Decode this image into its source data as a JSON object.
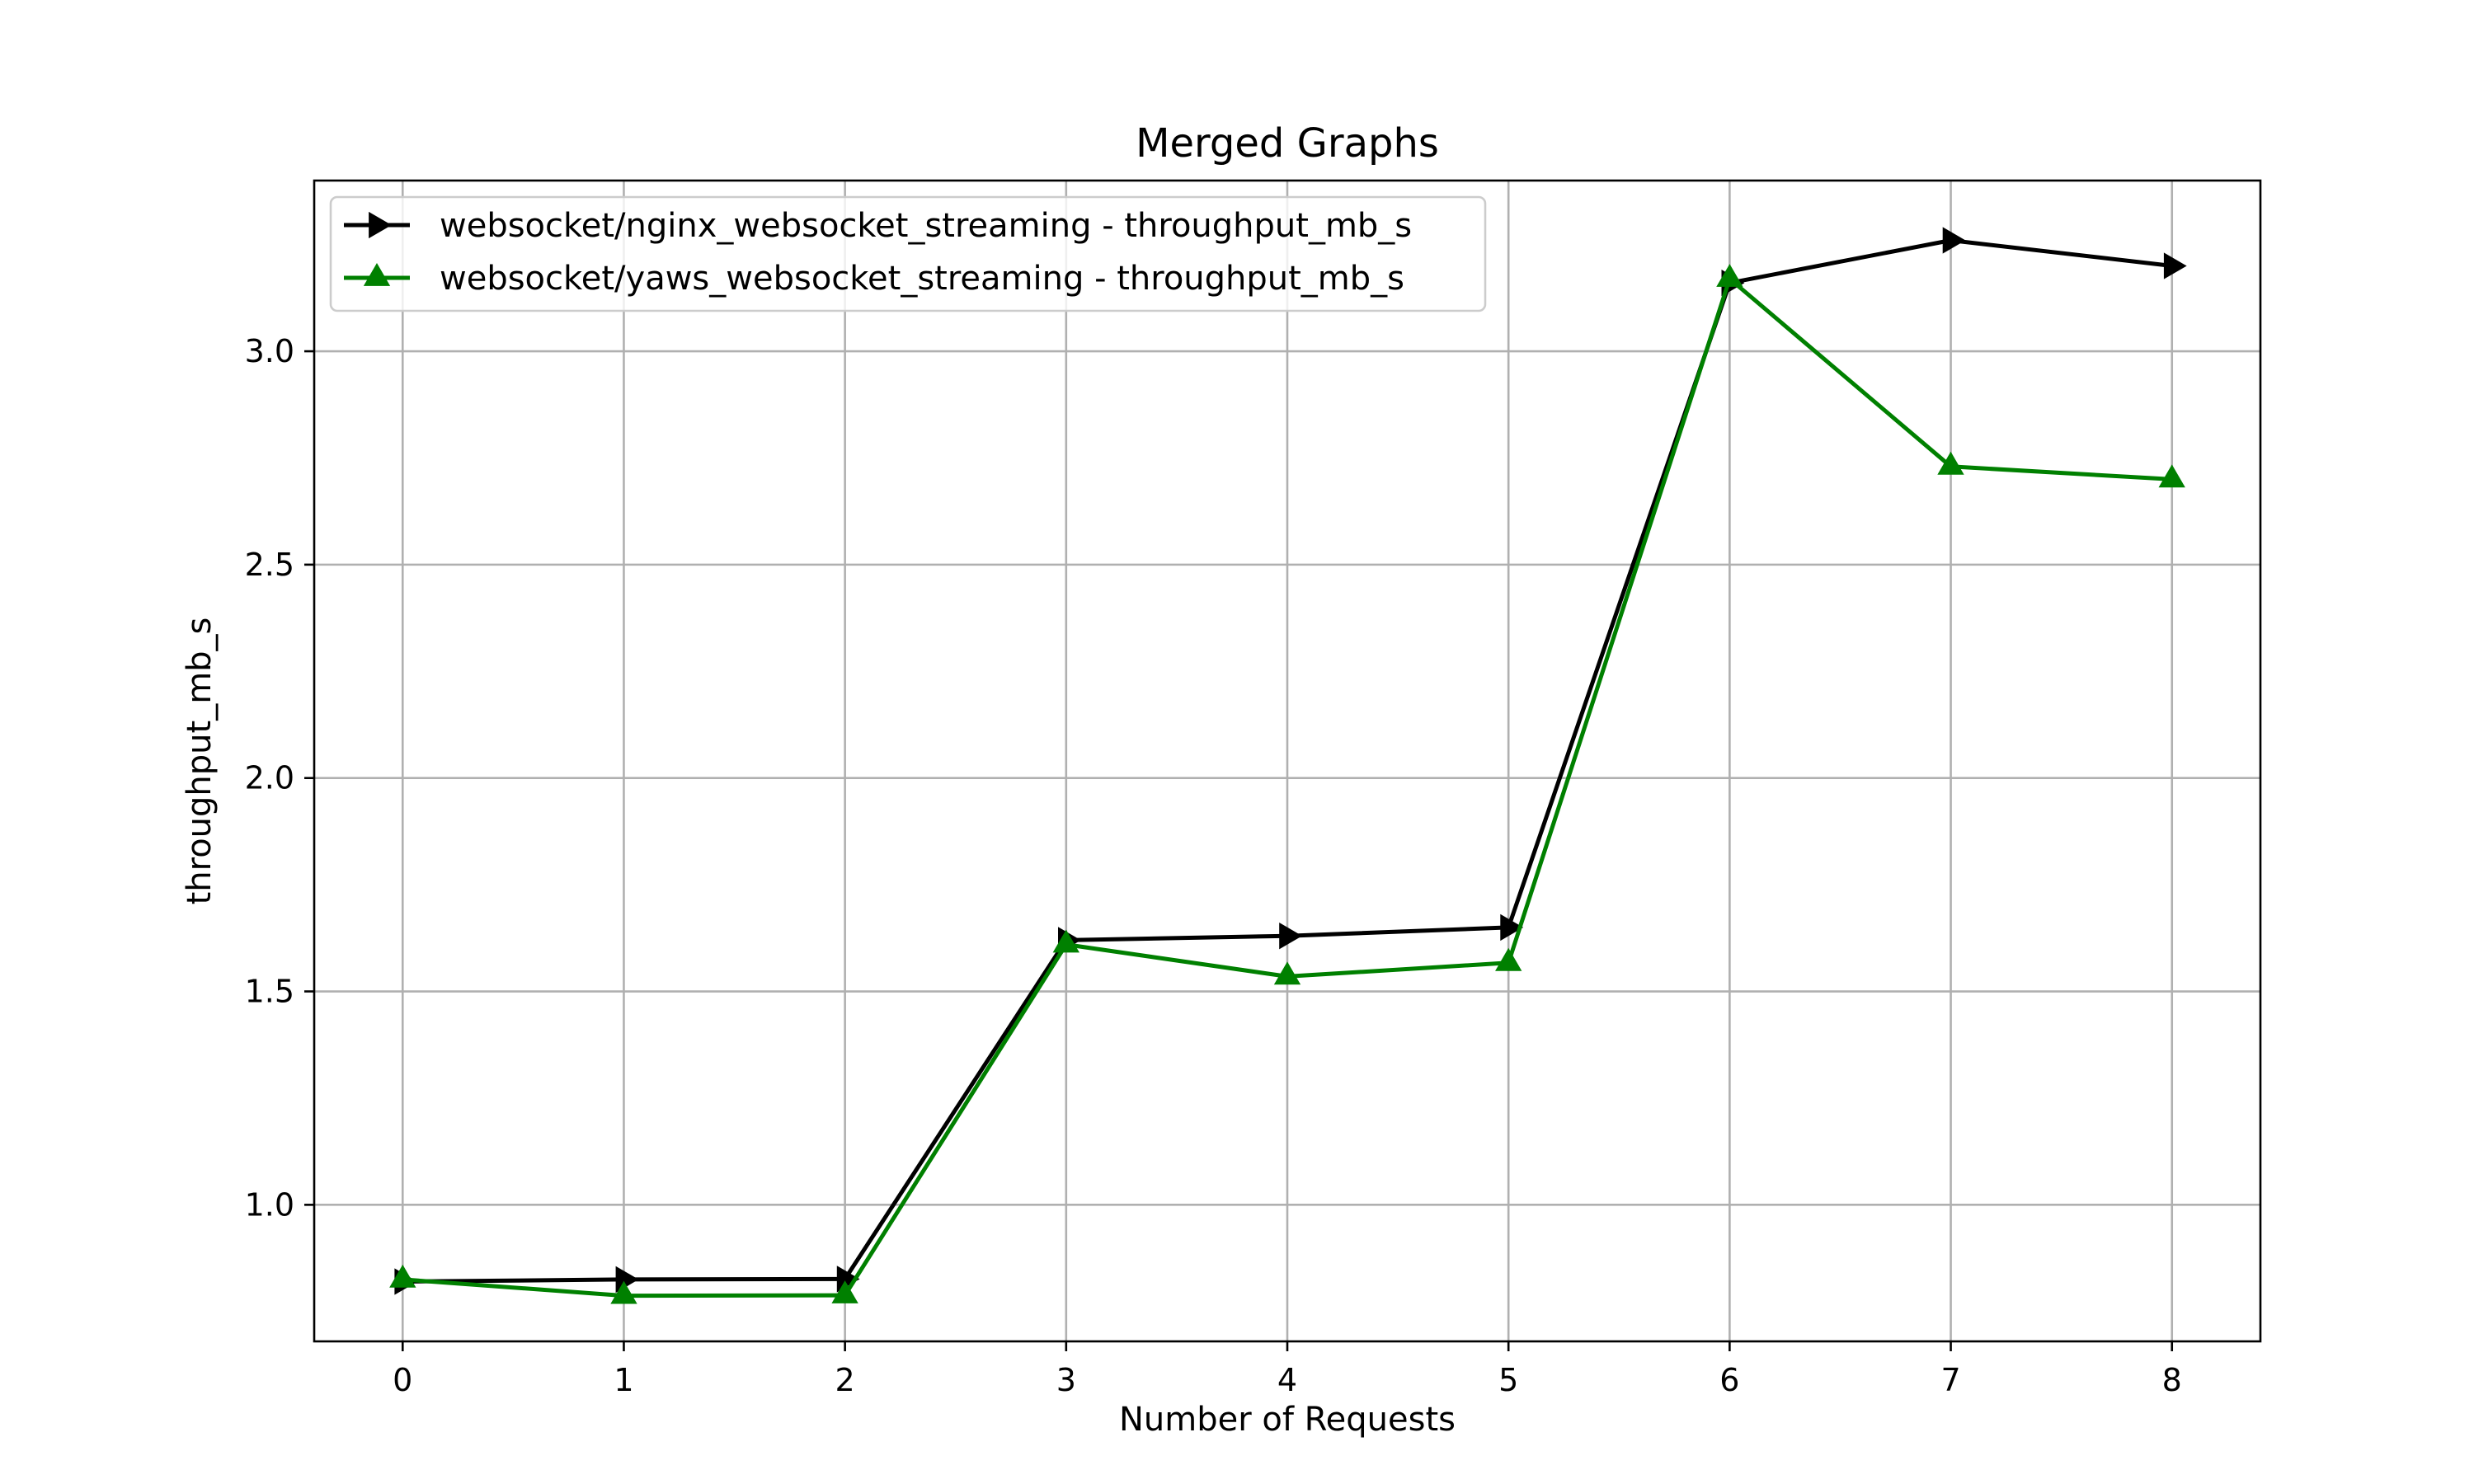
{
  "chart_data": {
    "type": "line",
    "title": "Merged Graphs",
    "xlabel": "Number of Requests",
    "ylabel": "throughput_mb_s",
    "x": [
      0,
      1,
      2,
      3,
      4,
      5,
      6,
      7,
      8
    ],
    "xticks": [
      "0",
      "1",
      "2",
      "3",
      "4",
      "5",
      "6",
      "7",
      "8"
    ],
    "yticks": [
      "1.0",
      "1.5",
      "2.0",
      "2.5",
      "3.0"
    ],
    "xlim": [
      -0.4,
      8.4
    ],
    "ylim": [
      0.68,
      3.4
    ],
    "grid": true,
    "legend_position": "upper-left",
    "series": [
      {
        "name": "websocket/nginx_websocket_streaming - throughput_mb_s",
        "color": "#000000",
        "marker": "triangle-right",
        "values": [
          0.82,
          0.825,
          0.826,
          1.62,
          1.63,
          1.65,
          3.16,
          3.26,
          3.2
        ]
      },
      {
        "name": "websocket/yaws_websocket_streaming - throughput_mb_s",
        "color": "#008000",
        "marker": "triangle-up",
        "values": [
          0.825,
          0.787,
          0.788,
          1.61,
          1.535,
          1.567,
          3.17,
          2.73,
          2.7
        ]
      }
    ]
  }
}
